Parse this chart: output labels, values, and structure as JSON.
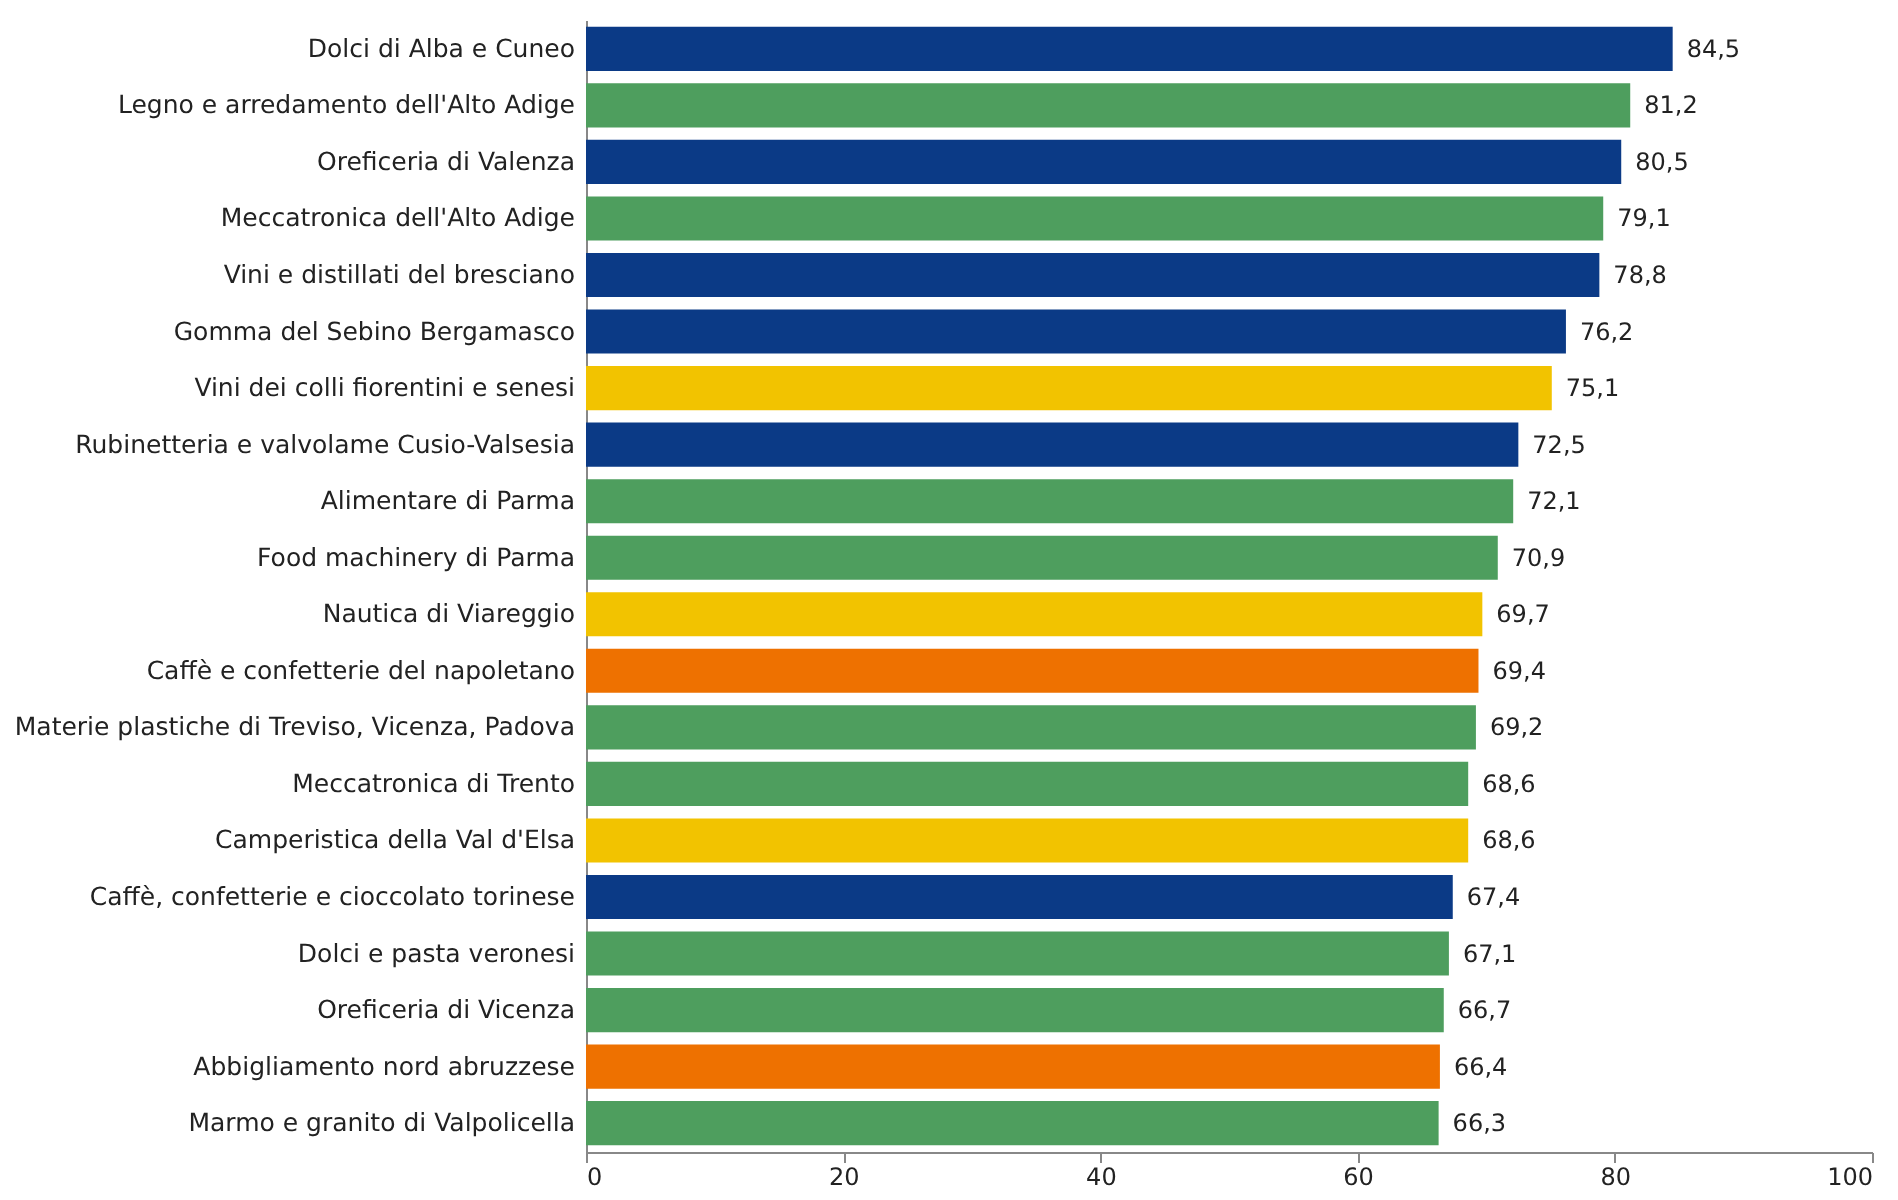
{
  "chart_data": {
    "type": "bar",
    "orientation": "horizontal",
    "categories": [
      "Dolci di Alba e Cuneo",
      "Legno e arredamento dell'Alto Adige",
      "Oreficeria di Valenza",
      "Meccatronica dell'Alto Adige",
      "Vini e distillati del bresciano",
      "Gomma del Sebino Bergamasco",
      "Vini dei colli fiorentini e senesi",
      "Rubinetteria e valvolame Cusio-Valsesia",
      "Alimentare di Parma",
      "Food machinery di Parma",
      "Nautica di Viareggio",
      "Caffè e confetterie del napoletano",
      "Materie plastiche di Treviso, Vicenza, Padova",
      "Meccatronica di Trento",
      "Camperistica della Val d'Elsa",
      "Caffè, confetterie e cioccolato torinese",
      "Dolci e pasta veronesi",
      "Oreficeria di Vicenza",
      "Abbigliamento nord abruzzese",
      "Marmo e granito di Valpolicella"
    ],
    "values": [
      84.5,
      81.2,
      80.5,
      79.1,
      78.8,
      76.2,
      75.1,
      72.5,
      72.1,
      70.9,
      69.7,
      69.4,
      69.2,
      68.6,
      68.6,
      67.4,
      67.1,
      66.7,
      66.4,
      66.3
    ],
    "value_labels": [
      "84,5",
      "81,2",
      "80,5",
      "79,1",
      "78,8",
      "76,2",
      "75,1",
      "72,5",
      "72,1",
      "70,9",
      "69,7",
      "69,4",
      "69,2",
      "68,6",
      "68,6",
      "67,4",
      "67,1",
      "66,7",
      "66,4",
      "66,3"
    ],
    "colors": [
      "#0b3a86",
      "#4e9e5e",
      "#0b3a86",
      "#4e9e5e",
      "#0b3a86",
      "#0b3a86",
      "#f2c300",
      "#0b3a86",
      "#4e9e5e",
      "#4e9e5e",
      "#f2c300",
      "#ee7100",
      "#4e9e5e",
      "#4e9e5e",
      "#f2c300",
      "#0b3a86",
      "#4e9e5e",
      "#4e9e5e",
      "#ee7100",
      "#4e9e5e"
    ],
    "xlim": [
      0,
      100
    ],
    "xticks": [
      0,
      20,
      40,
      60,
      80,
      100
    ]
  }
}
